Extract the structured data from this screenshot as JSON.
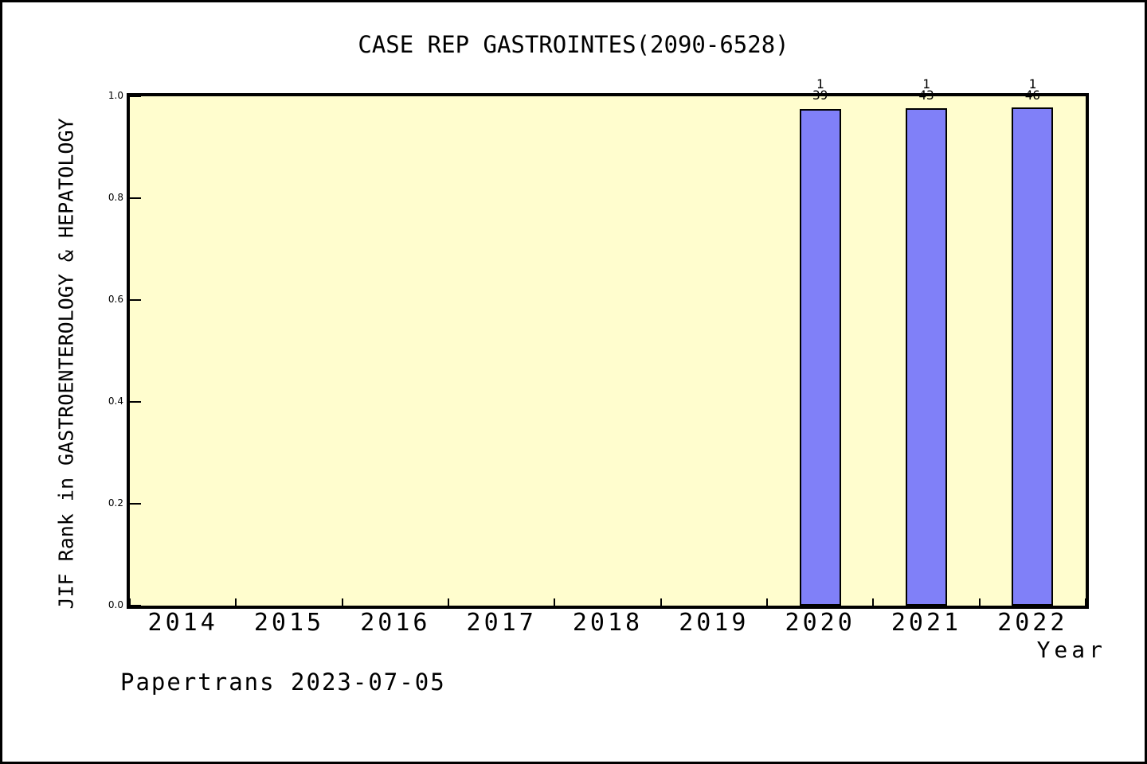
{
  "footer": {
    "credit": "Papertrans 2023-07-05"
  },
  "chart_data": {
    "type": "bar",
    "title": "CASE REP GASTROINTES(2090-6528)",
    "xlabel": "Year",
    "ylabel": "JIF Rank in GASTROENTEROLOGY & HEPATOLOGY",
    "categories": [
      "2014",
      "2015",
      "2016",
      "2017",
      "2018",
      "2019",
      "2020",
      "2021",
      "2022"
    ],
    "values": [
      null,
      null,
      null,
      null,
      null,
      null,
      0.9744,
      0.9767,
      0.9783
    ],
    "bar_labels": [
      null,
      null,
      null,
      null,
      null,
      null,
      "1/39",
      "1/43",
      "1/46"
    ],
    "ylim": [
      0,
      1
    ],
    "yticks": [
      0.0,
      0.2,
      0.4,
      0.6,
      0.8,
      1.0
    ],
    "ytick_labels": [
      "0.0",
      "0.2",
      "0.4",
      "0.6",
      "0.8",
      "1.0"
    ],
    "grid": false,
    "legend": null,
    "colors": {
      "bar_fill": "#8080F8",
      "bar_edge": "#000000",
      "plot_bg": "#FFFDCE",
      "frame": "#000000",
      "page_bg": "#FFFFFF",
      "text": "#000000"
    }
  }
}
